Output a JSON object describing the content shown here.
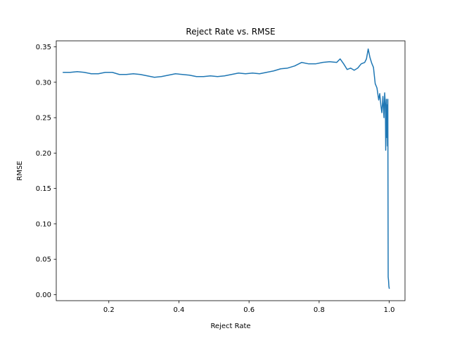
{
  "chart_data": {
    "type": "line",
    "title": "Reject Rate vs. RMSE",
    "xlabel": "Reject Rate",
    "ylabel": "RMSE",
    "xlim": [
      0.05,
      1.045
    ],
    "ylim": [
      -0.0085,
      0.3585
    ],
    "xticks": [
      {
        "value": 0.2,
        "label": "0.2"
      },
      {
        "value": 0.4,
        "label": "0.4"
      },
      {
        "value": 0.6,
        "label": "0.6"
      },
      {
        "value": 0.8,
        "label": "0.8"
      },
      {
        "value": 1.0,
        "label": "1.0"
      }
    ],
    "yticks": [
      {
        "value": 0.0,
        "label": "0.00"
      },
      {
        "value": 0.05,
        "label": "0.05"
      },
      {
        "value": 0.1,
        "label": "0.10"
      },
      {
        "value": 0.15,
        "label": "0.15"
      },
      {
        "value": 0.2,
        "label": "0.20"
      },
      {
        "value": 0.25,
        "label": "0.25"
      },
      {
        "value": 0.3,
        "label": "0.30"
      },
      {
        "value": 0.35,
        "label": "0.35"
      }
    ],
    "grid": false,
    "series": [
      {
        "color": "#1f77b4",
        "x": [
          0.07,
          0.09,
          0.11,
          0.13,
          0.15,
          0.17,
          0.19,
          0.21,
          0.23,
          0.25,
          0.27,
          0.29,
          0.31,
          0.33,
          0.35,
          0.37,
          0.39,
          0.41,
          0.43,
          0.45,
          0.47,
          0.49,
          0.51,
          0.53,
          0.55,
          0.57,
          0.59,
          0.61,
          0.63,
          0.65,
          0.67,
          0.69,
          0.71,
          0.73,
          0.75,
          0.77,
          0.79,
          0.81,
          0.83,
          0.85,
          0.86,
          0.87,
          0.88,
          0.89,
          0.9,
          0.91,
          0.92,
          0.93,
          0.935,
          0.94,
          0.945,
          0.95,
          0.955,
          0.96,
          0.965,
          0.97,
          0.973,
          0.976,
          0.979,
          0.982,
          0.985,
          0.987,
          0.989,
          0.99,
          0.991,
          0.992,
          0.993,
          0.994,
          0.995,
          0.996,
          0.997,
          0.998,
          0.999,
          1.0
        ],
        "y": [
          0.314,
          0.314,
          0.315,
          0.314,
          0.312,
          0.312,
          0.314,
          0.314,
          0.311,
          0.311,
          0.312,
          0.311,
          0.309,
          0.307,
          0.308,
          0.31,
          0.312,
          0.311,
          0.31,
          0.308,
          0.308,
          0.309,
          0.308,
          0.309,
          0.311,
          0.313,
          0.312,
          0.313,
          0.312,
          0.314,
          0.316,
          0.319,
          0.32,
          0.323,
          0.328,
          0.326,
          0.326,
          0.328,
          0.329,
          0.328,
          0.333,
          0.326,
          0.318,
          0.32,
          0.317,
          0.32,
          0.326,
          0.328,
          0.333,
          0.347,
          0.335,
          0.327,
          0.321,
          0.298,
          0.292,
          0.275,
          0.284,
          0.268,
          0.257,
          0.28,
          0.25,
          0.285,
          0.268,
          0.204,
          0.238,
          0.276,
          0.222,
          0.268,
          0.21,
          0.276,
          0.025,
          0.02,
          0.012,
          0.009
        ]
      }
    ]
  }
}
